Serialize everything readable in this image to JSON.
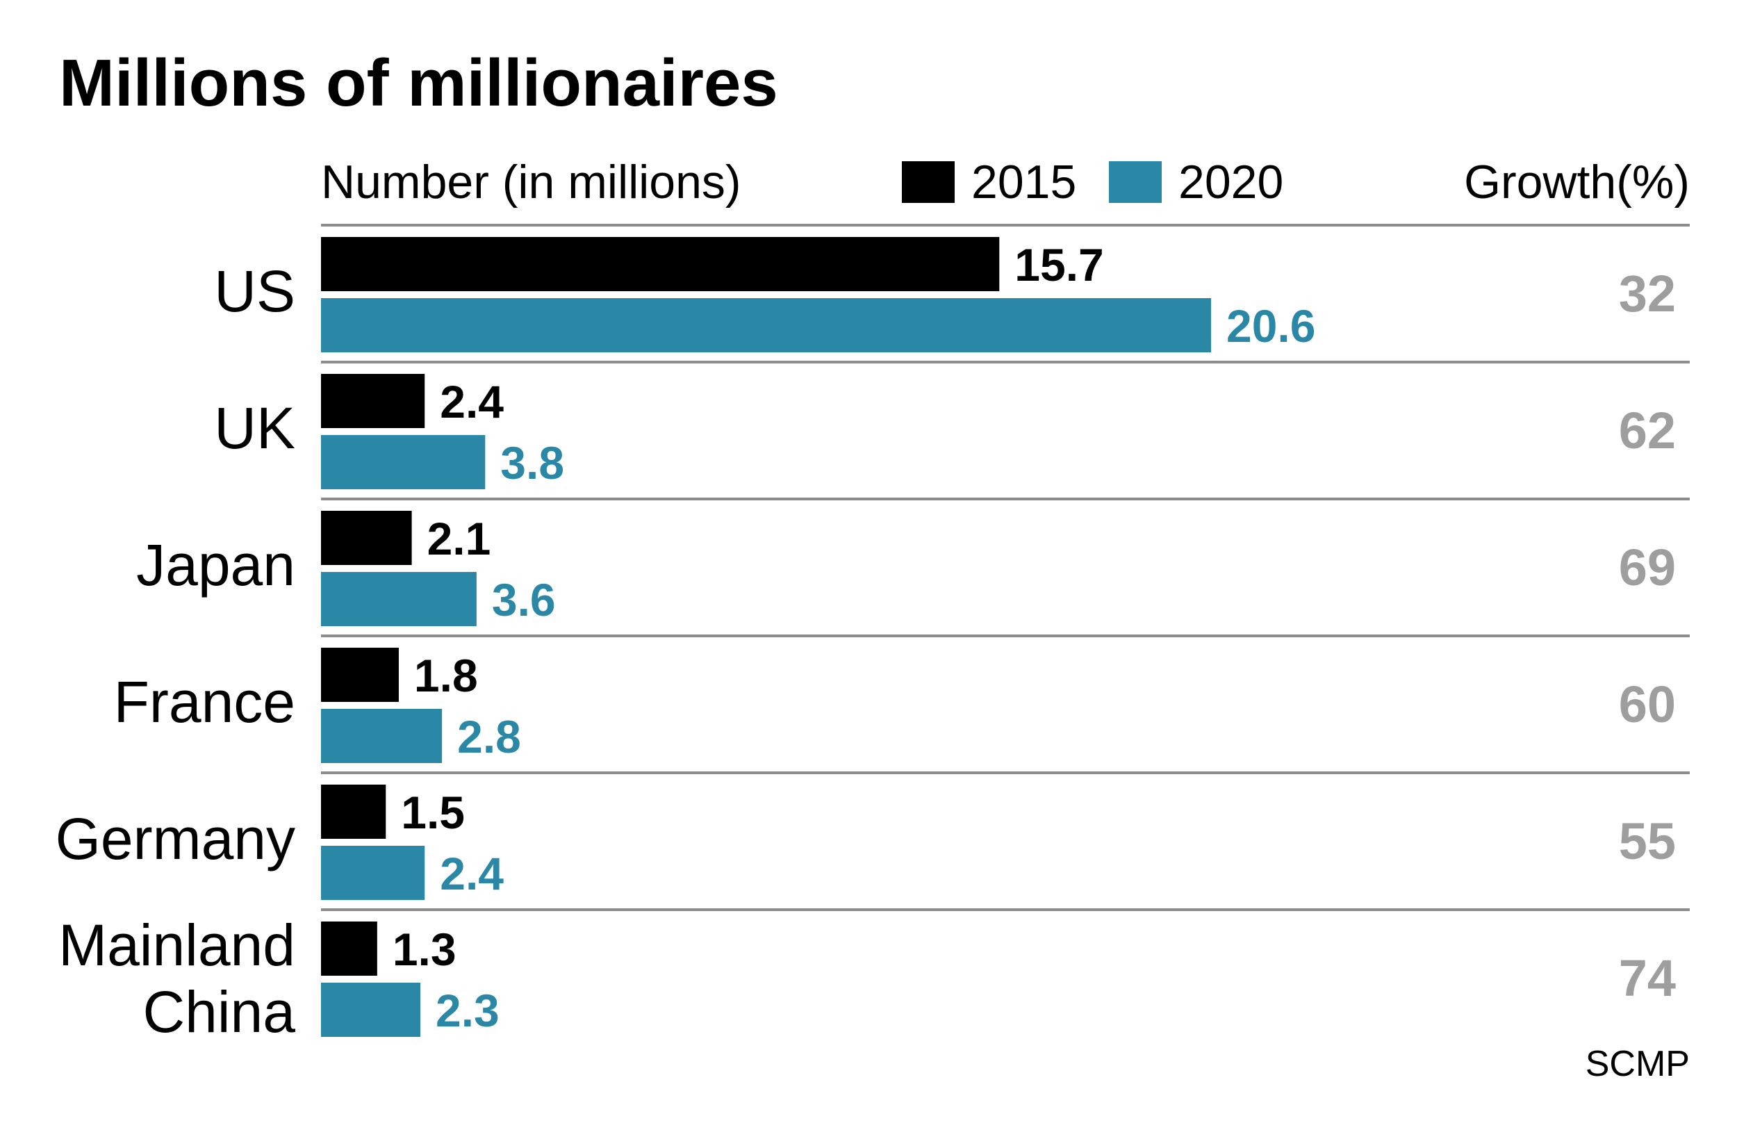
{
  "chart_data": {
    "type": "bar",
    "orientation": "horizontal",
    "title": "Millions of millionaires",
    "subtitle": "Number (in millions)",
    "categories": [
      "US",
      "UK",
      "Japan",
      "France",
      "Germany",
      "Mainland China"
    ],
    "series": [
      {
        "name": "2015",
        "color": "#000000",
        "values": [
          15.7,
          2.4,
          2.1,
          1.8,
          1.5,
          1.3
        ]
      },
      {
        "name": "2020",
        "color": "#2a87a6",
        "values": [
          20.6,
          3.8,
          3.6,
          2.8,
          2.4,
          2.3
        ]
      }
    ],
    "growth": {
      "label": "Growth(%)",
      "color": "#9e9e9e",
      "values": [
        32,
        62,
        69,
        60,
        55,
        74
      ]
    },
    "legend_position": "top",
    "grid": false,
    "xlim": [
      0,
      21
    ],
    "source": "SCMP"
  }
}
